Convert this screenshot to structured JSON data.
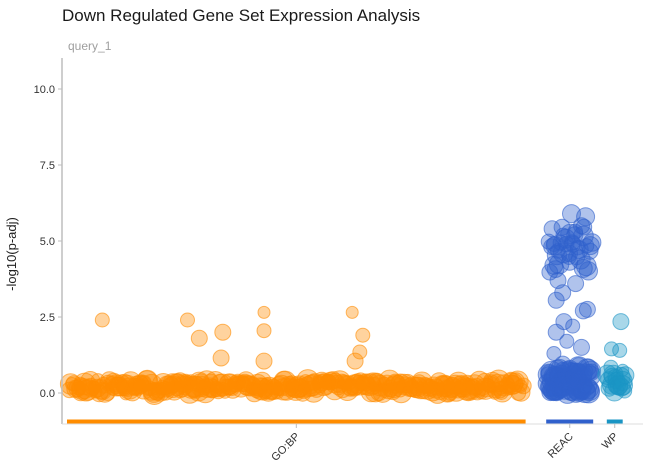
{
  "chart_data": {
    "type": "scatter",
    "title": "Down Regulated Gene Set Expression Analysis",
    "subtitle": "query_1",
    "xlabel": "",
    "ylabel": "-log10(p-adj)",
    "ylim": [
      -0.95,
      11.0
    ],
    "yticks": [
      0.0,
      2.5,
      5.0,
      7.5,
      10.0
    ],
    "ytick_labels": [
      "0.0",
      "2.5",
      "5.0",
      "7.5",
      "10.0"
    ],
    "grid": false,
    "legend": "none",
    "colors": {
      "GO:BP": "#ff8c00",
      "REAC": "#3060cc",
      "WP": "#1a95c4"
    },
    "categories": [
      "GO:BP",
      "REAC",
      "WP"
    ],
    "category_labels": [
      "GO:BP",
      "REAC",
      "WP"
    ],
    "x_domain": [
      0,
      100
    ],
    "category_ranges": {
      "GO:BP": [
        0,
        78
      ],
      "REAC": [
        81.5,
        89.5
      ],
      "WP": [
        91.8,
        94.5
      ]
    },
    "series": [
      {
        "category": "GO:BP",
        "points": [
          {
            "x": 6.0,
            "y": 2.4,
            "size": 7
          },
          {
            "x": 20.5,
            "y": 2.4,
            "size": 7
          },
          {
            "x": 22.5,
            "y": 1.8,
            "size": 8
          },
          {
            "x": 26.5,
            "y": 2.0,
            "size": 8
          },
          {
            "x": 26.2,
            "y": 1.15,
            "size": 8
          },
          {
            "x": 33.5,
            "y": 2.65,
            "size": 6
          },
          {
            "x": 33.5,
            "y": 2.05,
            "size": 7
          },
          {
            "x": 33.5,
            "y": 1.05,
            "size": 8
          },
          {
            "x": 48.5,
            "y": 2.65,
            "size": 6
          },
          {
            "x": 50.3,
            "y": 1.9,
            "size": 7
          },
          {
            "x": 49.8,
            "y": 1.35,
            "size": 7
          },
          {
            "x": 49.0,
            "y": 1.05,
            "size": 8
          },
          {
            "x": 64.5,
            "y": 0.3,
            "size": 8
          },
          {
            "x": 65.5,
            "y": 0.25,
            "size": 8
          },
          {
            "x": 66.5,
            "y": 0.1,
            "size": 8
          }
        ],
        "band": {
          "x_range": [
            0.5,
            77.5
          ],
          "y_range": [
            -0.02,
            0.42
          ],
          "count": 320,
          "size_range": [
            6,
            11
          ],
          "seed": 11
        }
      },
      {
        "category": "REAC",
        "points": [
          {
            "x": 85.8,
            "y": 5.9,
            "size": 9
          },
          {
            "x": 88.2,
            "y": 5.8,
            "size": 9
          },
          {
            "x": 82.5,
            "y": 5.4,
            "size": 8
          },
          {
            "x": 84.2,
            "y": 5.45,
            "size": 8
          },
          {
            "x": 87.5,
            "y": 5.5,
            "size": 8
          },
          {
            "x": 83.0,
            "y": 4.85,
            "size": 9
          },
          {
            "x": 86.0,
            "y": 4.9,
            "size": 8
          },
          {
            "x": 89.0,
            "y": 4.85,
            "size": 9
          },
          {
            "x": 82.8,
            "y": 4.2,
            "size": 9
          },
          {
            "x": 85.5,
            "y": 4.3,
            "size": 8
          },
          {
            "x": 87.8,
            "y": 4.1,
            "size": 9
          },
          {
            "x": 83.5,
            "y": 3.7,
            "size": 8
          },
          {
            "x": 86.5,
            "y": 3.6,
            "size": 8
          },
          {
            "x": 84.3,
            "y": 3.3,
            "size": 8
          },
          {
            "x": 83.2,
            "y": 3.05,
            "size": 8
          },
          {
            "x": 88.5,
            "y": 2.75,
            "size": 8
          },
          {
            "x": 87.8,
            "y": 2.7,
            "size": 8
          },
          {
            "x": 84.5,
            "y": 2.35,
            "size": 8
          },
          {
            "x": 86.0,
            "y": 2.2,
            "size": 7
          },
          {
            "x": 83.2,
            "y": 2.0,
            "size": 8
          },
          {
            "x": 85.0,
            "y": 1.7,
            "size": 7
          },
          {
            "x": 87.5,
            "y": 1.5,
            "size": 8
          },
          {
            "x": 82.8,
            "y": 1.3,
            "size": 7
          },
          {
            "x": 84.3,
            "y": 0.95,
            "size": 8
          },
          {
            "x": 87.0,
            "y": 0.9,
            "size": 8
          }
        ],
        "band": {
          "x_range": [
            81.8,
            89.2
          ],
          "y_range": [
            0.0,
            0.85
          ],
          "count": 90,
          "size_range": [
            7,
            11
          ],
          "seed": 23
        },
        "upper_band": {
          "x_range": [
            82.0,
            89.2
          ],
          "y_range": [
            3.9,
            5.6
          ],
          "count": 30,
          "size_range": [
            7,
            10
          ],
          "seed": 37
        }
      },
      {
        "category": "WP",
        "points": [
          {
            "x": 94.2,
            "y": 2.35,
            "size": 8
          },
          {
            "x": 92.6,
            "y": 1.45,
            "size": 7
          },
          {
            "x": 94.0,
            "y": 1.4,
            "size": 7
          },
          {
            "x": 92.5,
            "y": 0.85,
            "size": 7
          },
          {
            "x": 94.5,
            "y": 0.75,
            "size": 6
          }
        ],
        "band": {
          "x_range": [
            92.0,
            95.0
          ],
          "y_range": [
            0.05,
            0.6
          ],
          "count": 18,
          "size_range": [
            7,
            10
          ],
          "seed": 41
        }
      }
    ]
  }
}
